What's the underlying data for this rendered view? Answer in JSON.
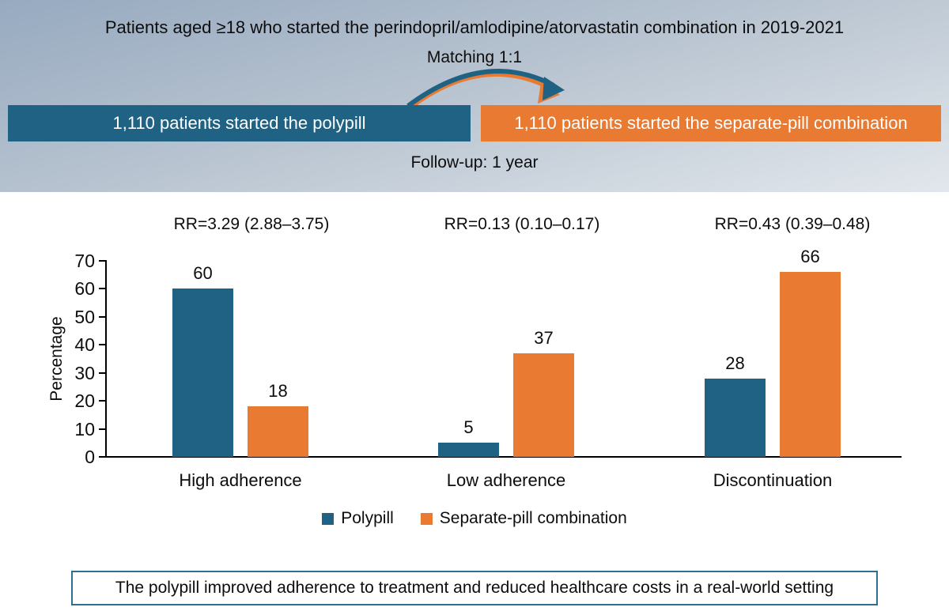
{
  "header": {
    "title": "Patients aged ≥18 who started the perindopril/amlodipine/atorvastatin combination in 2019-2021",
    "matching": "Matching 1:1",
    "left_box": "1,110 patients started the polypill",
    "right_box": "1,110 patients started the separate-pill combination",
    "follow_up": "Follow-up: 1 year"
  },
  "colors": {
    "polypill_blue": "#1f6284",
    "separate_orange": "#e97a31",
    "conclusion_border": "#2e6e8e"
  },
  "chart_data": {
    "type": "bar",
    "title": "",
    "categories": [
      "High adherence",
      "Low adherence",
      "Discontinuation"
    ],
    "series": [
      {
        "name": "Polypill",
        "color": "#1f6284",
        "values": [
          60,
          5,
          28
        ]
      },
      {
        "name": "Separate-pill combination",
        "color": "#e97a31",
        "values": [
          18,
          37,
          66
        ]
      }
    ],
    "rr_labels": [
      "RR=3.29 (2.88–3.75)",
      "RR=0.13 (0.10–0.17)",
      "RR=0.43 (0.39–0.48)"
    ],
    "xlabel": "",
    "ylabel": "Percentage",
    "ylim": [
      0,
      70
    ],
    "yticks": [
      0,
      10,
      20,
      30,
      40,
      50,
      60,
      70
    ],
    "grid": false,
    "legend_position": "bottom"
  },
  "footer": {
    "conclusion": "The polypill improved adherence to treatment and reduced healthcare costs in a real-world setting"
  }
}
